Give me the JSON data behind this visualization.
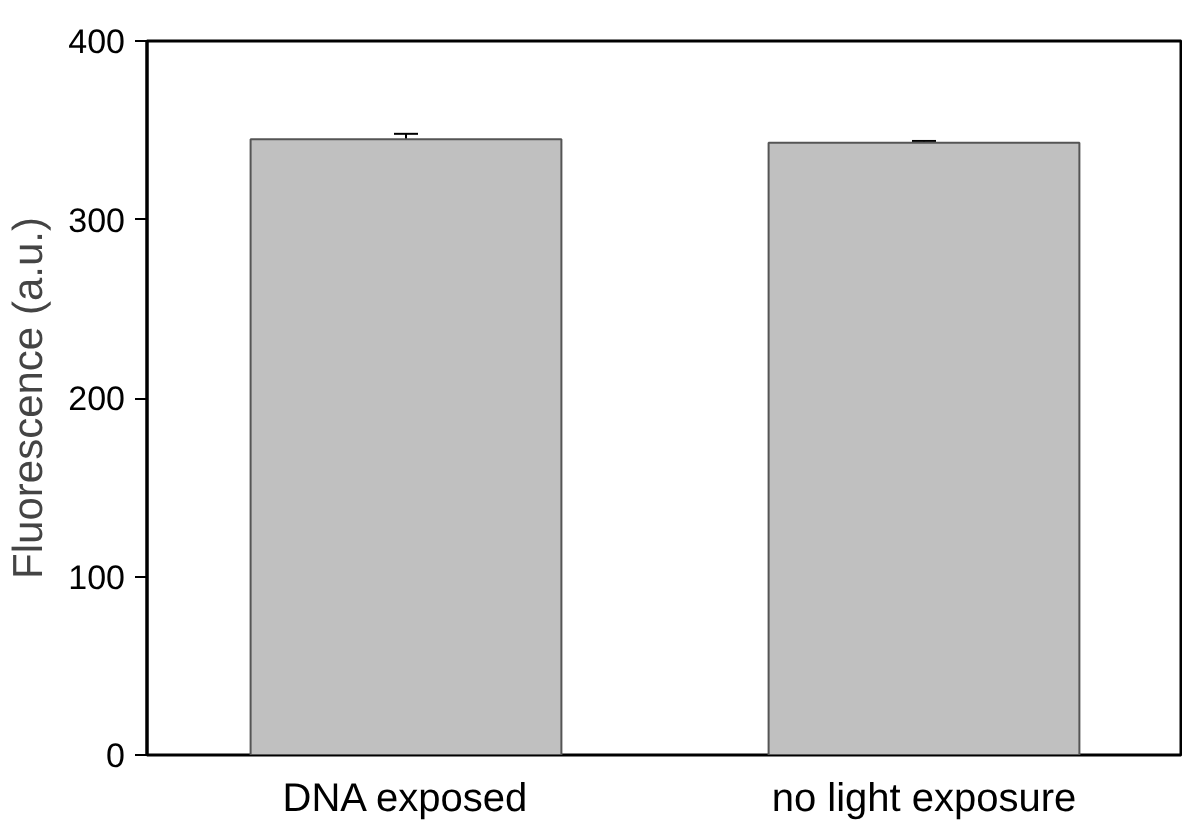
{
  "chart_data": {
    "type": "bar",
    "ylabel": "Fluorescence (a.u.)",
    "categories": [
      "DNA exposed",
      "no light exposure"
    ],
    "values": [
      345,
      343
    ],
    "errors": [
      3,
      1
    ],
    "color": "#c0c0c0",
    "ylim": [
      0,
      400
    ],
    "yticks": [
      0,
      100,
      200,
      300,
      400
    ],
    "grid": false
  }
}
